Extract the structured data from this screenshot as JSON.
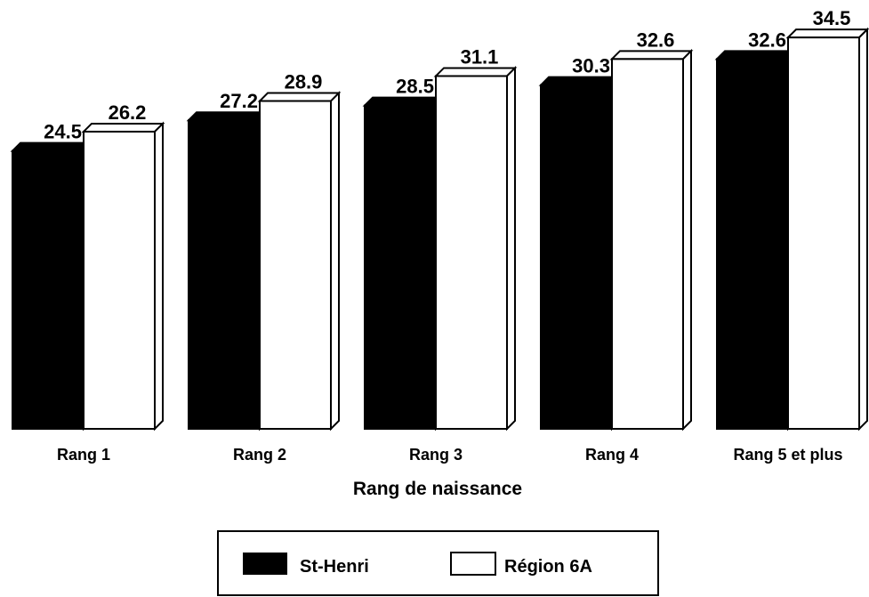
{
  "chart_data": {
    "type": "bar",
    "style": "3d",
    "categories": [
      "Rang 1",
      "Rang 2",
      "Rang 3",
      "Rang 4",
      "Rang 5 et plus"
    ],
    "series": [
      {
        "name": "St-Henri",
        "values": [
          24.5,
          27.2,
          28.5,
          30.3,
          32.6
        ],
        "color": "#000000"
      },
      {
        "name": "Région 6A",
        "values": [
          26.2,
          28.9,
          31.1,
          32.6,
          34.5
        ],
        "color": "#ffffff"
      }
    ],
    "xlabel": "Rang de naissance",
    "ylabel": "",
    "ylim": [
      0,
      36
    ],
    "grid": false,
    "legend_position": "bottom-center"
  }
}
